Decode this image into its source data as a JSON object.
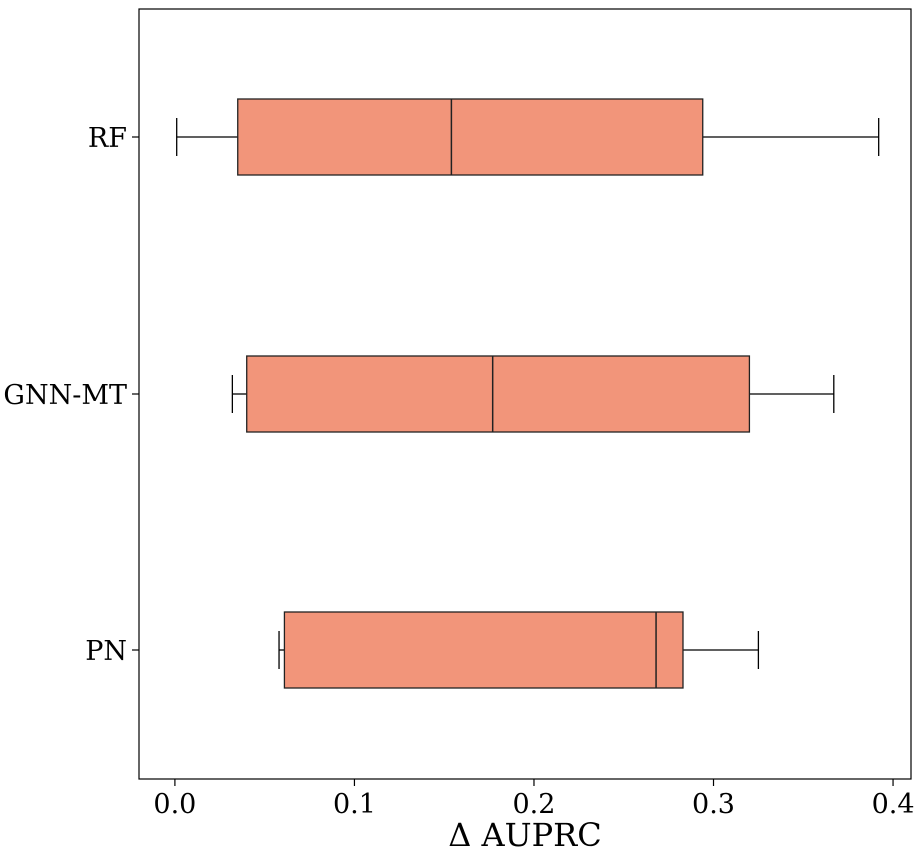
{
  "chart_data": {
    "type": "boxplot",
    "orientation": "horizontal",
    "xlabel": "Δ AUPRC",
    "ylabel": "",
    "xlim": [
      -0.02,
      0.41
    ],
    "xticks": [
      0.0,
      0.1,
      0.2,
      0.3,
      0.4
    ],
    "xtick_labels": [
      "0.0",
      "0.1",
      "0.2",
      "0.3",
      "0.4"
    ],
    "grid": false,
    "box_color": "#f2957a",
    "edge_color": "#222222",
    "categories": [
      "RF",
      "GNN-MT",
      "PN"
    ],
    "boxes": [
      {
        "label": "RF",
        "whisker_low": 0.001,
        "q1": 0.035,
        "median": 0.154,
        "q3": 0.294,
        "whisker_high": 0.392
      },
      {
        "label": "GNN-MT",
        "whisker_low": 0.032,
        "q1": 0.04,
        "median": 0.177,
        "q3": 0.32,
        "whisker_high": 0.367
      },
      {
        "label": "PN",
        "whisker_low": 0.058,
        "q1": 0.061,
        "median": 0.268,
        "q3": 0.283,
        "whisker_high": 0.325
      }
    ]
  }
}
